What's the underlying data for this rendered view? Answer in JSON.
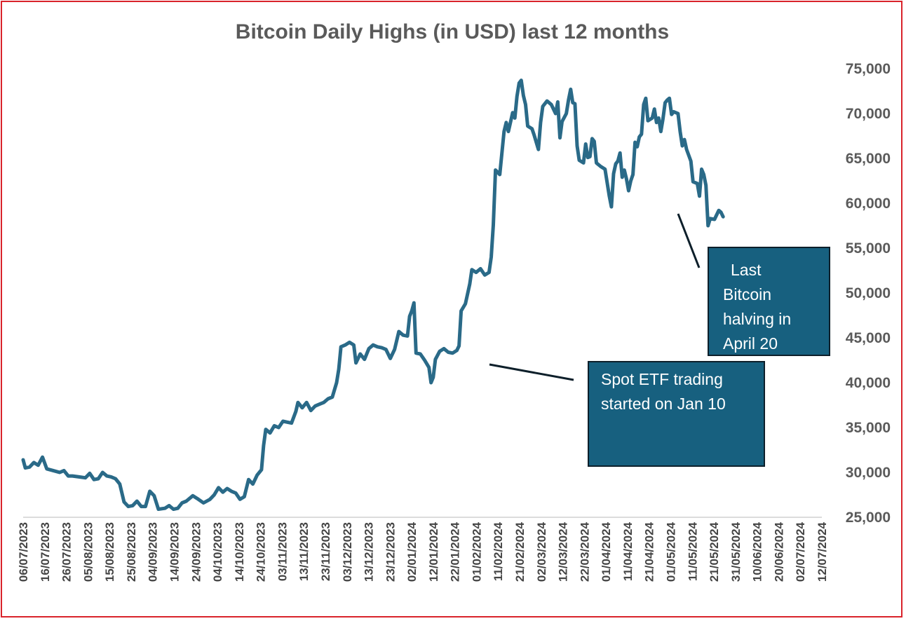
{
  "chart_data": {
    "type": "line",
    "title": "Bitcoin Daily Highs (in USD) last 12 months",
    "xlabel": "",
    "ylabel": "",
    "ylim": [
      25000,
      75000
    ],
    "y_ticks": [
      "25,000",
      "30,000",
      "35,000",
      "40,000",
      "45,000",
      "50,000",
      "55,000",
      "60,000",
      "65,000",
      "70,000",
      "75,000"
    ],
    "y_tick_values": [
      25000,
      30000,
      35000,
      40000,
      45000,
      50000,
      55000,
      60000,
      65000,
      70000,
      75000
    ],
    "x_ticks": [
      "06/07/2023",
      "16/07/2023",
      "26/07/2023",
      "05/08/2023",
      "15/08/2023",
      "25/08/2023",
      "04/09/2023",
      "14/09/2023",
      "24/09/2023",
      "04/10/2023",
      "14/10/2023",
      "24/10/2023",
      "03/11/2023",
      "13/11/2023",
      "23/11/2023",
      "03/12/2023",
      "13/12/2023",
      "23/12/2023",
      "02/01/2024",
      "12/01/2024",
      "22/01/2024",
      "01/02/2024",
      "11/02/2024",
      "21/02/2024",
      "02/03/2024",
      "12/03/2024",
      "22/03/2024",
      "01/04/2024",
      "11/04/2024",
      "21/04/2024",
      "01/05/2024",
      "11/05/2024",
      "21/05/2024",
      "31/05/2024",
      "10/06/2024",
      "20/06/2024",
      "02/07/2024",
      "12/07/2024"
    ],
    "x_range_days": [
      0,
      372
    ],
    "series": [
      {
        "name": "Bitcoin Daily High (USD)",
        "color": "#2a6a88",
        "points": [
          [
            0,
            31400
          ],
          [
            1,
            30500
          ],
          [
            3,
            30600
          ],
          [
            5,
            31100
          ],
          [
            7,
            30800
          ],
          [
            9,
            31700
          ],
          [
            11,
            30400
          ],
          [
            14,
            30200
          ],
          [
            17,
            30000
          ],
          [
            19,
            30200
          ],
          [
            21,
            29600
          ],
          [
            23,
            29600
          ],
          [
            26,
            29500
          ],
          [
            29,
            29400
          ],
          [
            31,
            29900
          ],
          [
            33,
            29200
          ],
          [
            35,
            29300
          ],
          [
            37,
            30000
          ],
          [
            39,
            29600
          ],
          [
            41,
            29500
          ],
          [
            43,
            29300
          ],
          [
            45,
            28700
          ],
          [
            47,
            26700
          ],
          [
            49,
            26200
          ],
          [
            51,
            26300
          ],
          [
            53,
            26800
          ],
          [
            55,
            26200
          ],
          [
            57,
            26200
          ],
          [
            59,
            27900
          ],
          [
            61,
            27400
          ],
          [
            63,
            25900
          ],
          [
            66,
            26000
          ],
          [
            68,
            26300
          ],
          [
            70,
            25900
          ],
          [
            72,
            26000
          ],
          [
            74,
            26600
          ],
          [
            76,
            26800
          ],
          [
            79,
            27400
          ],
          [
            81,
            27100
          ],
          [
            84,
            26600
          ],
          [
            87,
            27000
          ],
          [
            89,
            27500
          ],
          [
            91,
            28300
          ],
          [
            93,
            27800
          ],
          [
            95,
            28200
          ],
          [
            97,
            27900
          ],
          [
            99,
            27700
          ],
          [
            101,
            27000
          ],
          [
            103,
            27300
          ],
          [
            105,
            29200
          ],
          [
            107,
            28700
          ],
          [
            109,
            29700
          ],
          [
            111,
            30300
          ],
          [
            112,
            33000
          ],
          [
            113,
            34800
          ],
          [
            115,
            34400
          ],
          [
            117,
            35200
          ],
          [
            119,
            35000
          ],
          [
            121,
            35700
          ],
          [
            123,
            35600
          ],
          [
            125,
            35500
          ],
          [
            127,
            36800
          ],
          [
            128,
            37800
          ],
          [
            130,
            37200
          ],
          [
            132,
            37800
          ],
          [
            134,
            36900
          ],
          [
            136,
            37400
          ],
          [
            138,
            37600
          ],
          [
            140,
            37800
          ],
          [
            142,
            38200
          ],
          [
            144,
            38400
          ],
          [
            146,
            40000
          ],
          [
            147,
            41500
          ],
          [
            148,
            44000
          ],
          [
            150,
            44200
          ],
          [
            152,
            44500
          ],
          [
            154,
            44200
          ],
          [
            155,
            42200
          ],
          [
            157,
            43200
          ],
          [
            159,
            42600
          ],
          [
            161,
            43800
          ],
          [
            163,
            44200
          ],
          [
            165,
            44000
          ],
          [
            167,
            43900
          ],
          [
            169,
            43700
          ],
          [
            171,
            42700
          ],
          [
            173,
            43700
          ],
          [
            175,
            45700
          ],
          [
            177,
            45300
          ],
          [
            179,
            45200
          ],
          [
            180,
            47400
          ],
          [
            181,
            48000
          ],
          [
            182,
            48900
          ],
          [
            183,
            43300
          ],
          [
            185,
            43200
          ],
          [
            187,
            42500
          ],
          [
            189,
            41700
          ],
          [
            190,
            40000
          ],
          [
            191,
            40600
          ],
          [
            192,
            42600
          ],
          [
            194,
            43500
          ],
          [
            196,
            43800
          ],
          [
            198,
            43400
          ],
          [
            200,
            43300
          ],
          [
            202,
            43600
          ],
          [
            203,
            44100
          ],
          [
            204,
            48000
          ],
          [
            206,
            48800
          ],
          [
            208,
            51000
          ],
          [
            209,
            52600
          ],
          [
            211,
            52300
          ],
          [
            213,
            52700
          ],
          [
            215,
            52000
          ],
          [
            217,
            52300
          ],
          [
            218,
            54000
          ],
          [
            219,
            57600
          ],
          [
            220,
            63700
          ],
          [
            222,
            63200
          ],
          [
            224,
            68000
          ],
          [
            225,
            69000
          ],
          [
            226,
            68000
          ],
          [
            228,
            70100
          ],
          [
            229,
            69500
          ],
          [
            230,
            71900
          ],
          [
            231,
            73400
          ],
          [
            232,
            73700
          ],
          [
            233,
            72000
          ],
          [
            234,
            71000
          ],
          [
            235,
            68600
          ],
          [
            237,
            68300
          ],
          [
            238,
            67600
          ],
          [
            240,
            66000
          ],
          [
            241,
            69000
          ],
          [
            242,
            70800
          ],
          [
            244,
            71400
          ],
          [
            246,
            71000
          ],
          [
            248,
            70000
          ],
          [
            249,
            71300
          ],
          [
            250,
            67300
          ],
          [
            251,
            69100
          ],
          [
            253,
            70000
          ],
          [
            254,
            71500
          ],
          [
            255,
            72700
          ],
          [
            256,
            71200
          ],
          [
            257,
            71100
          ],
          [
            258,
            66400
          ],
          [
            259,
            64800
          ],
          [
            261,
            64500
          ],
          [
            262,
            66600
          ],
          [
            263,
            65100
          ],
          [
            264,
            65200
          ],
          [
            265,
            67200
          ],
          [
            266,
            66900
          ],
          [
            267,
            64500
          ],
          [
            269,
            64100
          ],
          [
            271,
            63800
          ],
          [
            273,
            60800
          ],
          [
            274,
            59600
          ],
          [
            275,
            63300
          ],
          [
            276,
            64400
          ],
          [
            277,
            64700
          ],
          [
            278,
            65600
          ],
          [
            279,
            62900
          ],
          [
            280,
            63700
          ],
          [
            281,
            62700
          ],
          [
            282,
            61400
          ],
          [
            283,
            62500
          ],
          [
            284,
            63200
          ],
          [
            285,
            66800
          ],
          [
            286,
            66300
          ],
          [
            287,
            67400
          ],
          [
            288,
            67700
          ],
          [
            289,
            71000
          ],
          [
            290,
            71700
          ],
          [
            291,
            69200
          ],
          [
            293,
            69500
          ],
          [
            294,
            70500
          ],
          [
            295,
            69000
          ],
          [
            296,
            69500
          ],
          [
            297,
            68000
          ],
          [
            298,
            69400
          ],
          [
            299,
            71200
          ],
          [
            300,
            71500
          ],
          [
            301,
            71700
          ],
          [
            302,
            69900
          ],
          [
            303,
            70200
          ],
          [
            305,
            70000
          ],
          [
            306,
            68000
          ],
          [
            307,
            66400
          ],
          [
            308,
            67100
          ],
          [
            309,
            66000
          ],
          [
            311,
            64700
          ],
          [
            312,
            62400
          ],
          [
            314,
            62200
          ],
          [
            315,
            60800
          ],
          [
            316,
            63800
          ],
          [
            317,
            63200
          ],
          [
            318,
            62000
          ],
          [
            319,
            57500
          ],
          [
            320,
            58300
          ],
          [
            322,
            58200
          ],
          [
            324,
            59200
          ],
          [
            325,
            59000
          ],
          [
            326,
            58500
          ]
        ]
      }
    ],
    "annotations": [
      {
        "lines": [
          "Last",
          "Bitcoin",
          "halving in",
          "April 20"
        ],
        "target_day": 289
      },
      {
        "lines": [
          "Spot ETF trading",
          "started on Jan 10"
        ],
        "target_day": 188
      }
    ]
  }
}
